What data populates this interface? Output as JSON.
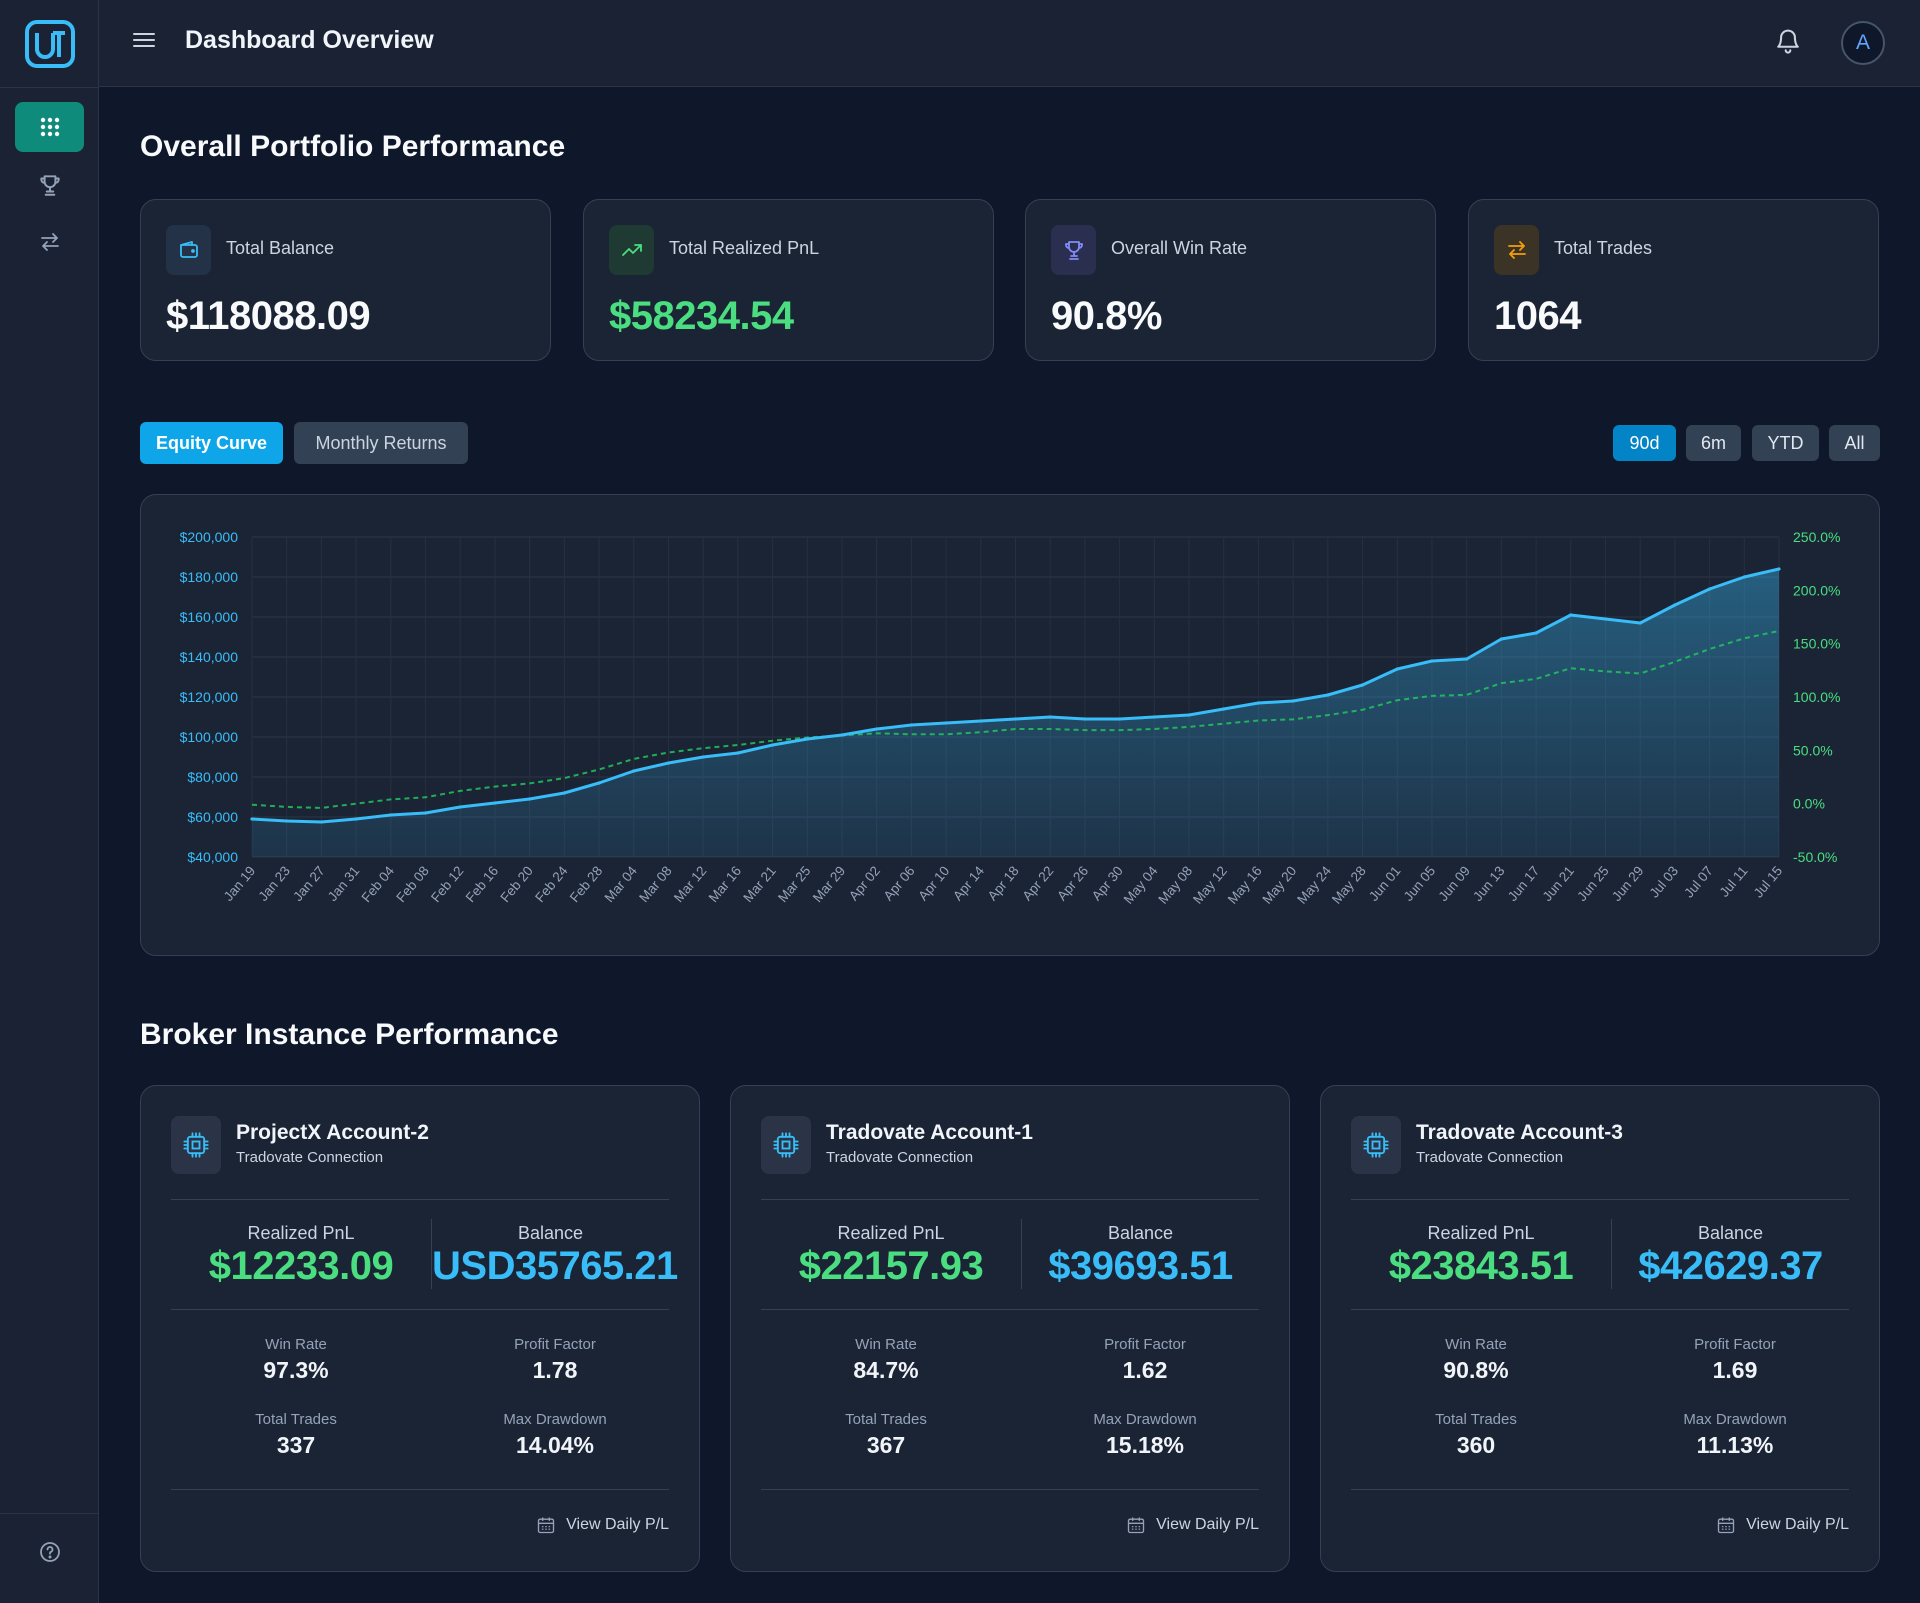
{
  "header": {
    "title": "Dashboard Overview",
    "avatar_initial": "A"
  },
  "overview": {
    "title": "Overall Portfolio Performance",
    "cards": [
      {
        "label": "Total Balance",
        "value": "$118088.09",
        "icon": "wallet-icon"
      },
      {
        "label": "Total Realized PnL",
        "value": "$58234.54",
        "icon": "trending-up-icon"
      },
      {
        "label": "Overall Win Rate",
        "value": "90.8%",
        "icon": "trophy-icon"
      },
      {
        "label": "Total Trades",
        "value": "1064",
        "icon": "swap-arrows-icon"
      }
    ]
  },
  "chart_tabs": [
    "Equity Curve",
    "Monthly Returns"
  ],
  "ranges": [
    "90d",
    "6m",
    "YTD",
    "All"
  ],
  "colors": {
    "accent": "#0ea5e9",
    "sidebar_active": "#0f8b7b",
    "positive": "#4ade80",
    "balance": "#38bdf8",
    "equity_line": "#38bdf8",
    "return_line": "#22c55e"
  },
  "chart_data": {
    "type": "area",
    "x": [
      "Jan 19",
      "Jan 23",
      "Jan 27",
      "Jan 31",
      "Feb 04",
      "Feb 08",
      "Feb 12",
      "Feb 16",
      "Feb 20",
      "Feb 24",
      "Feb 28",
      "Mar 04",
      "Mar 08",
      "Mar 12",
      "Mar 16",
      "Mar 21",
      "Mar 25",
      "Mar 29",
      "Apr 02",
      "Apr 06",
      "Apr 10",
      "Apr 14",
      "Apr 18",
      "Apr 22",
      "Apr 26",
      "Apr 30",
      "May 04",
      "May 08",
      "May 12",
      "May 16",
      "May 20",
      "May 24",
      "May 28",
      "Jun 01",
      "Jun 05",
      "Jun 09",
      "Jun 13",
      "Jun 17",
      "Jun 21",
      "Jun 25",
      "Jun 29",
      "Jul 03",
      "Jul 07",
      "Jul 11",
      "Jul 15"
    ],
    "series": [
      {
        "axis": "left",
        "style": "solid-area",
        "values": [
          59000,
          58000,
          57500,
          59000,
          61000,
          62000,
          65000,
          67000,
          69000,
          72000,
          77000,
          83000,
          87000,
          90000,
          92000,
          96000,
          99000,
          101000,
          104000,
          106000,
          107000,
          108000,
          109000,
          110000,
          109000,
          109000,
          110000,
          111000,
          114000,
          117000,
          118000,
          121000,
          126000,
          134000,
          138000,
          139000,
          149000,
          152000,
          161000,
          159000,
          157000,
          166000,
          174000,
          180000,
          184000
        ]
      },
      {
        "axis": "right",
        "style": "dashed",
        "values": [
          -1,
          -3,
          -4,
          0,
          4,
          6,
          12,
          16,
          19,
          24,
          32,
          42,
          48,
          52,
          55,
          59,
          62,
          64,
          66,
          65,
          65,
          67,
          70,
          70,
          69,
          69,
          70,
          72,
          75,
          78,
          79,
          83,
          88,
          97,
          101,
          102,
          113,
          117,
          127,
          124,
          122,
          133,
          145,
          155,
          162
        ]
      }
    ],
    "ylabel_left_ticks": [
      "$40,000",
      "$60,000",
      "$80,000",
      "$100,000",
      "$120,000",
      "$140,000",
      "$160,000",
      "$180,000",
      "$200,000"
    ],
    "ylabel_right_ticks": [
      "-50.0%",
      "0.0%",
      "50.0%",
      "100.0%",
      "150.0%",
      "200.0%",
      "250.0%"
    ],
    "ylim_left": [
      40000,
      200000
    ],
    "ylim_right": [
      -50,
      250
    ],
    "grid": true
  },
  "brokers_section": {
    "title": "Broker Instance Performance",
    "labels": {
      "realized": "Realized PnL",
      "balance": "Balance",
      "win_rate": "Win Rate",
      "profit_factor": "Profit Factor",
      "total_trades": "Total Trades",
      "max_drawdown": "Max Drawdown",
      "daily": "View Daily P/L"
    },
    "brokers": [
      {
        "name": "ProjectX Account-2",
        "connection": "Tradovate Connection",
        "realized": "$12233.09",
        "balance": "USD35765.21",
        "win_rate": "97.3%",
        "profit_factor": "1.78",
        "total_trades": "337",
        "max_drawdown": "14.04%"
      },
      {
        "name": "Tradovate Account-1",
        "connection": "Tradovate Connection",
        "realized": "$22157.93",
        "balance": "$39693.51",
        "win_rate": "84.7%",
        "profit_factor": "1.62",
        "total_trades": "367",
        "max_drawdown": "15.18%"
      },
      {
        "name": "Tradovate Account-3",
        "connection": "Tradovate Connection",
        "realized": "$23843.51",
        "balance": "$42629.37",
        "win_rate": "90.8%",
        "profit_factor": "1.69",
        "total_trades": "360",
        "max_drawdown": "11.13%"
      }
    ]
  }
}
